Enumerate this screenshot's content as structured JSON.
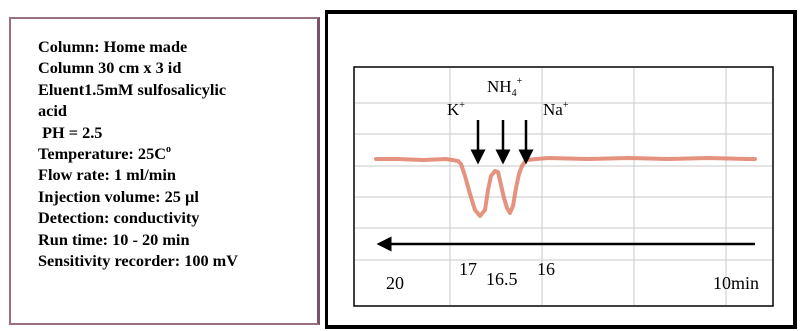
{
  "parameters": {
    "column": "Column: Home made",
    "column_size": "Column 30 cm x 3 id",
    "eluent": "Eluent1.5mM sulfosalicylic",
    "eluent_cont": "acid",
    "ph": " PH = 2.5",
    "temperature_label": "Temperature: 25C",
    "temperature_sup": "o",
    "flow_rate": "Flow rate: 1 ml/min",
    "injection_volume": "Injection volume: 25 µl",
    "detection": "Detection: conductivity",
    "run_time": "Run time: 10 - 20 min",
    "sensitivity": "Sensitivity recorder: 100 mV"
  },
  "chromatogram": {
    "peak_labels": {
      "k": "K",
      "k_sup": "+",
      "nh4": "NH",
      "nh4_sub": "4",
      "nh4_sup": "+",
      "na": "Na",
      "na_sup": "+"
    },
    "time_labels": {
      "start": "20",
      "k_time": "17",
      "nh4_time": "16.5",
      "na_time": "16",
      "end": "10min"
    },
    "colors": {
      "trace": "#e07f68",
      "grid": "#c8c8c8",
      "frame": "#000000"
    }
  },
  "chart_data": {
    "type": "line",
    "title": "",
    "xlabel": "",
    "ylabel": "",
    "x_direction": "right-to-left",
    "tick_labels": [
      "20",
      "17",
      "16.5",
      "16",
      "10min"
    ],
    "peaks": [
      {
        "name": "K+",
        "time": 17
      },
      {
        "name": "NH4+",
        "time": 16.5
      },
      {
        "name": "Na+",
        "time": 16
      }
    ],
    "grid": true
  }
}
